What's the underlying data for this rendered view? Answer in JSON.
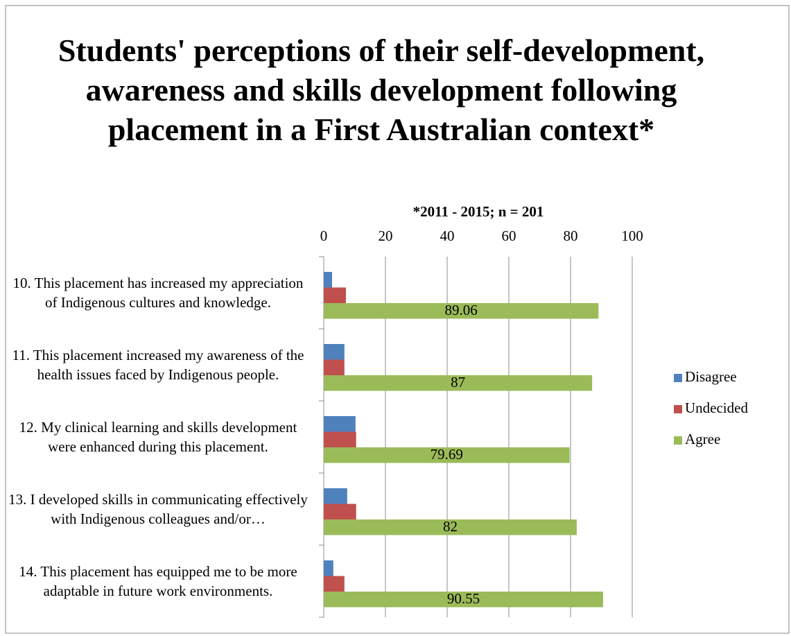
{
  "chart_data": {
    "type": "barh",
    "title": "Students' perceptions of their self-development, awareness and skills development following placement in a First Australian context*",
    "subtitle": "*2011 - 2015; n = 201",
    "categories": [
      "10. This placement has increased my appreciation of Indigenous cultures and knowledge.",
      "11. This placement increased my awareness of the health issues faced by Indigenous people.",
      "12. My clinical learning and skills development were enhanced during this placement.",
      "13. I developed skills in communicating effectively with Indigenous colleagues and/or…",
      "14. This placement has equipped me to be more adaptable in future work environments."
    ],
    "series": [
      {
        "name": "Disagree",
        "color": "#4f81bd",
        "values": [
          2.7,
          6.7,
          10.3,
          7.6,
          3.1
        ]
      },
      {
        "name": "Undecided",
        "color": "#c0504d",
        "values": [
          7.2,
          6.7,
          10.5,
          10.5,
          6.7
        ]
      },
      {
        "name": "Agree",
        "color": "#9bbb59",
        "values": [
          89.06,
          87,
          79.69,
          82,
          90.55
        ],
        "show_labels": true
      }
    ],
    "xlim": [
      0,
      100
    ],
    "xticks": [
      0,
      20,
      40,
      60,
      80,
      100
    ],
    "grid": true,
    "legend": "right"
  }
}
